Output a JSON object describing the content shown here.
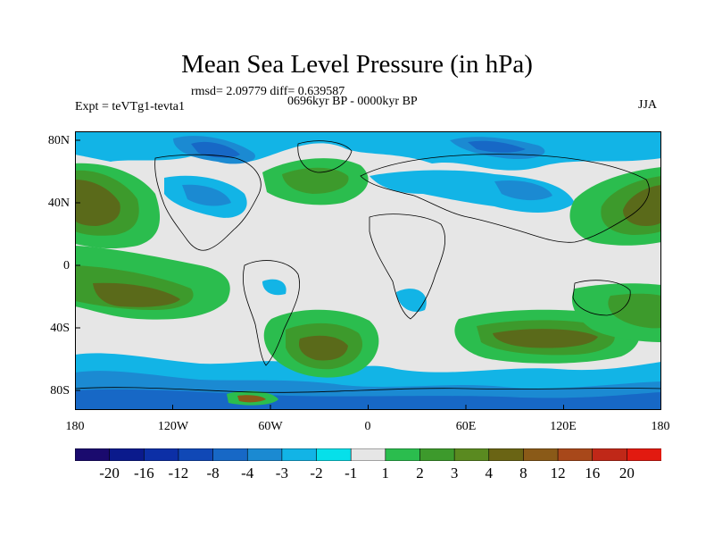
{
  "title": "Mean Sea Level Pressure (in hPa)",
  "stats": "rmsd= 2.09779 diff= 0.639587",
  "period": "0696kyr BP - 0000kyr BP",
  "experiment": "Expt = teVTg1-tevta1",
  "season": "JJA",
  "lat_labels": [
    "80N",
    "40N",
    "0",
    "40S",
    "80S"
  ],
  "lat_values": [
    80,
    40,
    0,
    -40,
    -80
  ],
  "lon_labels": [
    "180",
    "120W",
    "60W",
    "0",
    "60E",
    "120E",
    "180"
  ],
  "lon_values": [
    -180,
    -120,
    -60,
    0,
    60,
    120,
    180
  ],
  "colorbar": {
    "labels": [
      "-20",
      "-16",
      "-12",
      "-8",
      "-4",
      "-3",
      "-2",
      "-1",
      "1",
      "2",
      "3",
      "4",
      "8",
      "12",
      "16",
      "20"
    ],
    "colors": [
      "#1a0a6e",
      "#0a1a8c",
      "#0c2fa6",
      "#1048b6",
      "#1768c6",
      "#1b8ad2",
      "#12b4e6",
      "#06e0ea",
      "#e6e6e6",
      "#2bbd4e",
      "#3d9a2c",
      "#5a8a20",
      "#6a6414",
      "#8a5a18",
      "#a8481a",
      "#c02818",
      "#e21a10"
    ]
  },
  "colors": {
    "neutral": "#e6e6e6",
    "ocean_high": "#5a6a1a",
    "land_outline": "#000000"
  }
}
